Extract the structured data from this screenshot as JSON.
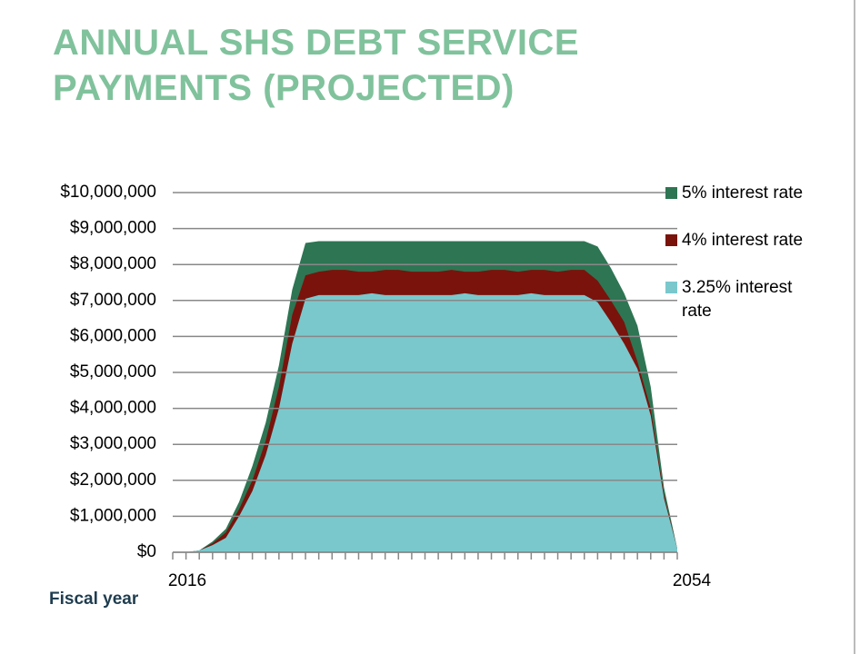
{
  "chart_data": {
    "type": "area",
    "title": "ANNUAL SHS DEBT SERVICE PAYMENTS (PROJECTED)",
    "x_label": "Fiscal year",
    "categories": [
      "2016",
      null,
      null,
      null,
      null,
      null,
      null,
      null,
      null,
      null,
      null,
      null,
      null,
      null,
      null,
      null,
      null,
      null,
      null,
      null,
      null,
      null,
      null,
      null,
      null,
      null,
      null,
      null,
      null,
      null,
      null,
      null,
      null,
      null,
      null,
      null,
      null,
      null,
      "2054"
    ],
    "series": [
      {
        "name": "5% interest rate",
        "color": "#2e7553",
        "values": [
          0,
          0,
          50000,
          300000,
          650000,
          1400000,
          2400000,
          3600000,
          5200000,
          7300000,
          8600000,
          8650000,
          8650000,
          8650000,
          8650000,
          8650000,
          8650000,
          8650000,
          8650000,
          8650000,
          8650000,
          8650000,
          8650000,
          8650000,
          8650000,
          8650000,
          8650000,
          8650000,
          8650000,
          8650000,
          8650000,
          8650000,
          8500000,
          7900000,
          7200000,
          6300000,
          4600000,
          1800000,
          100000
        ]
      },
      {
        "name": "4% interest rate",
        "color": "#7a130c",
        "values": [
          0,
          0,
          50000,
          250000,
          550000,
          1200000,
          2000000,
          3100000,
          4600000,
          6600000,
          7700000,
          7800000,
          7850000,
          7850000,
          7800000,
          7800000,
          7850000,
          7850000,
          7800000,
          7800000,
          7800000,
          7850000,
          7800000,
          7800000,
          7850000,
          7850000,
          7800000,
          7850000,
          7850000,
          7800000,
          7850000,
          7850000,
          7550000,
          7000000,
          6400000,
          5300000,
          4000000,
          1600000,
          100000
        ]
      },
      {
        "name": "3.25% interest rate",
        "color": "#7ac8cc",
        "values": [
          0,
          0,
          50000,
          200000,
          400000,
          1000000,
          1700000,
          2700000,
          4000000,
          5800000,
          7050000,
          7150000,
          7150000,
          7150000,
          7150000,
          7200000,
          7150000,
          7150000,
          7150000,
          7150000,
          7150000,
          7150000,
          7200000,
          7150000,
          7150000,
          7150000,
          7150000,
          7200000,
          7150000,
          7150000,
          7150000,
          7150000,
          6950000,
          6400000,
          5800000,
          5100000,
          3800000,
          1500000,
          100000
        ]
      }
    ],
    "ylim": [
      0,
      10000000
    ],
    "yticks": [
      {
        "value": 0,
        "label": "$0"
      },
      {
        "value": 1000000,
        "label": "$1,000,000"
      },
      {
        "value": 2000000,
        "label": "$2,000,000"
      },
      {
        "value": 3000000,
        "label": "$3,000,000"
      },
      {
        "value": 4000000,
        "label": "$4,000,000"
      },
      {
        "value": 5000000,
        "label": "$5,000,000"
      },
      {
        "value": 6000000,
        "label": "$6,000,000"
      },
      {
        "value": 7000000,
        "label": "$7,000,000"
      },
      {
        "value": 8000000,
        "label": "$8,000,000"
      },
      {
        "value": 9000000,
        "label": "$9,000,000"
      },
      {
        "value": 10000000,
        "label": "$10,000,000"
      }
    ],
    "grid": true,
    "legend": "right"
  }
}
